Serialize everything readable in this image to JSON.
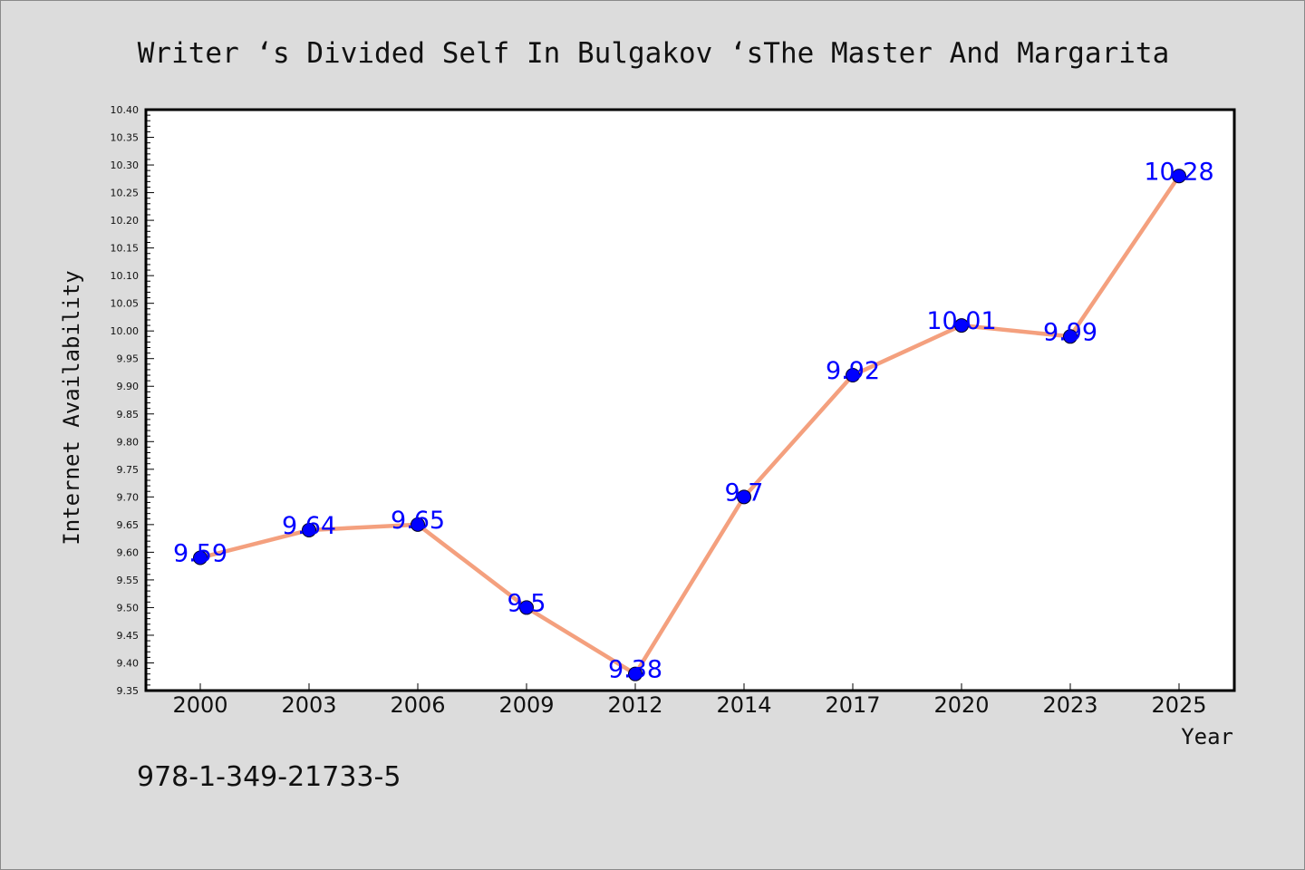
{
  "chart_data": {
    "type": "line",
    "title": "Writer ‘s Divided Self In Bulgakov ‘sThe Master And Margarita",
    "xlabel": "Year",
    "ylabel": "Internet Availability",
    "categories": [
      "2000",
      "2003",
      "2006",
      "2009",
      "2012",
      "2014",
      "2017",
      "2020",
      "2023",
      "2025"
    ],
    "series": [
      {
        "values": [
          9.59,
          9.64,
          9.65,
          9.5,
          9.38,
          9.7,
          9.92,
          10.01,
          9.99,
          10.28
        ],
        "labels": [
          "9.59",
          "9.64",
          "9.65",
          "9.5",
          "9.38",
          "9.7",
          "9.92",
          "10.01",
          "9.99",
          "10.28"
        ]
      }
    ],
    "ylim": [
      9.35,
      10.4
    ],
    "yticks": [
      "9.35",
      "9.40",
      "9.45",
      "9.50",
      "9.55",
      "9.60",
      "9.65",
      "9.70",
      "9.75",
      "9.80",
      "9.85",
      "9.90",
      "9.95",
      "10.00",
      "10.05",
      "10.10",
      "10.15",
      "10.20",
      "10.25",
      "10.30",
      "10.35",
      "10.40"
    ],
    "grid": false,
    "line_color": "#f4a07e",
    "marker_color": "#0000ff",
    "label_color": "#0000ff"
  },
  "footnote": "978-1-349-21733-5"
}
